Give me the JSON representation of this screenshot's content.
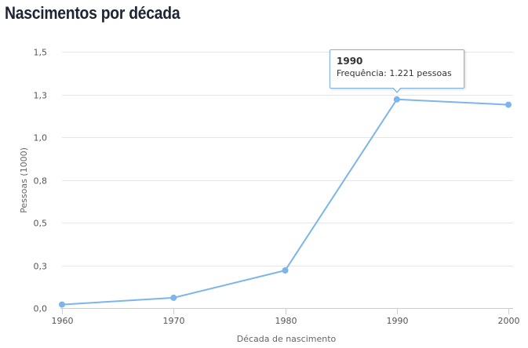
{
  "page": {
    "title": "Nascimentos por década"
  },
  "chart_data": {
    "type": "line",
    "xlabel": "Década de nascimento",
    "ylabel": "Pessoas (1000)",
    "x": [
      1960,
      1970,
      1980,
      1990,
      2000
    ],
    "x_tick_labels": [
      "1960",
      "1970",
      "1980",
      "1990",
      "2000"
    ],
    "ylim": [
      0,
      1.5
    ],
    "y_ticks": [
      0,
      0.25,
      0.5,
      0.75,
      1.0,
      1.25,
      1.5
    ],
    "y_tick_labels": [
      "0,0",
      "0,3",
      "0,5",
      "0,8",
      "1,0",
      "1,3",
      "1,5"
    ],
    "series": [
      {
        "values": [
          0.02,
          0.06,
          0.22,
          1.221,
          1.19
        ],
        "color": "#7cb5ec"
      }
    ],
    "grid": true,
    "grid_color": "#e6e6e6",
    "tooltip": {
      "title": "1990",
      "text": "Frequência: 1.221 pessoas",
      "point_index": 3
    }
  }
}
